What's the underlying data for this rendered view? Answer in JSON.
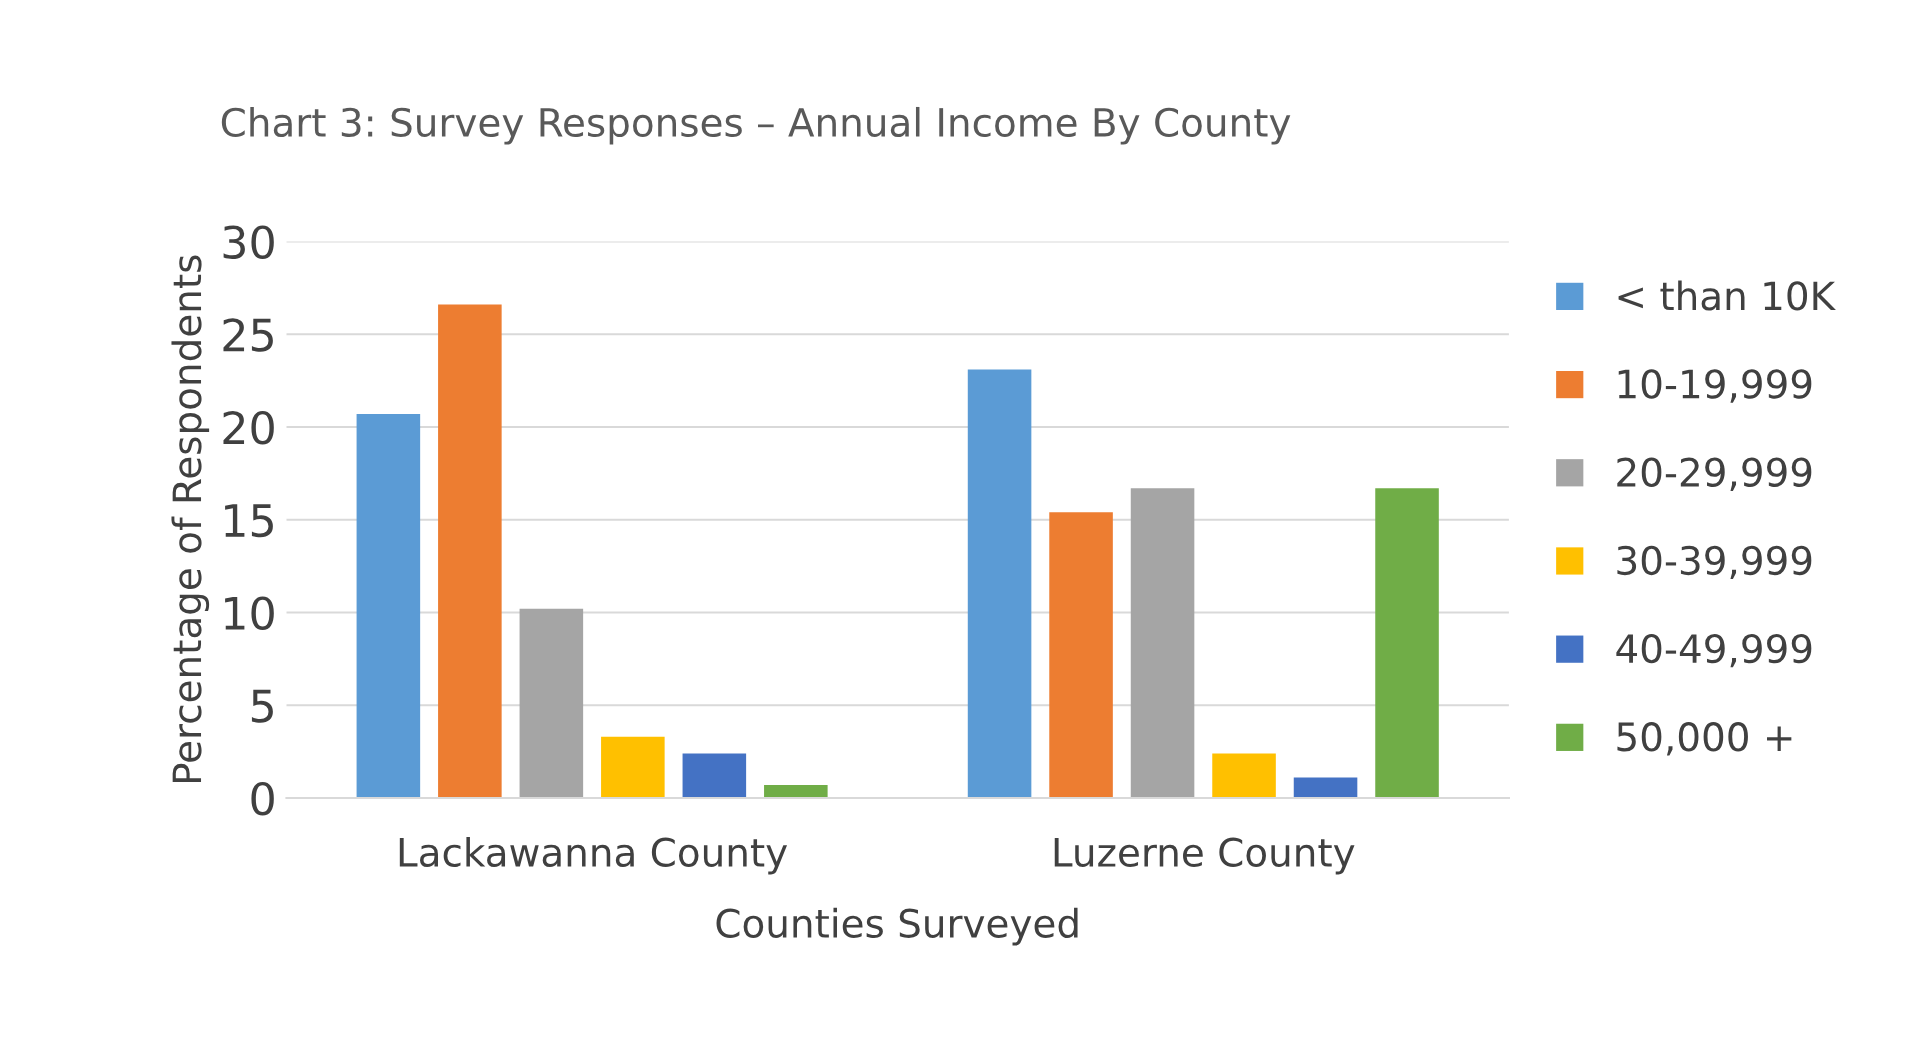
{
  "chart_data": {
    "type": "bar",
    "title": "Chart 3: Survey Responses – Annual Income By County",
    "xlabel": "Counties Surveyed",
    "ylabel": "Percentage of Respondents",
    "categories": [
      "Lackawanna County",
      "Luzerne County"
    ],
    "series": [
      {
        "name": "< than 10K",
        "color": "#5b9bd5",
        "values": [
          20.7,
          23.1
        ]
      },
      {
        "name": "10-19,999",
        "color": "#ed7d31",
        "values": [
          26.6,
          15.4
        ]
      },
      {
        "name": "20-29,999",
        "color": "#a5a5a5",
        "values": [
          10.2,
          16.7
        ]
      },
      {
        "name": "30-39,999",
        "color": "#ffc000",
        "values": [
          3.3,
          2.4
        ]
      },
      {
        "name": "40-49,999",
        "color": "#4472c4",
        "values": [
          2.4,
          1.1
        ]
      },
      {
        "name": "50,000 +",
        "color": "#70ad47",
        "values": [
          0.7,
          16.7
        ]
      }
    ],
    "ylim": [
      0,
      30
    ],
    "yticks": [
      0,
      5,
      10,
      15,
      20,
      25,
      30
    ],
    "grid": "y",
    "legend": "right"
  }
}
